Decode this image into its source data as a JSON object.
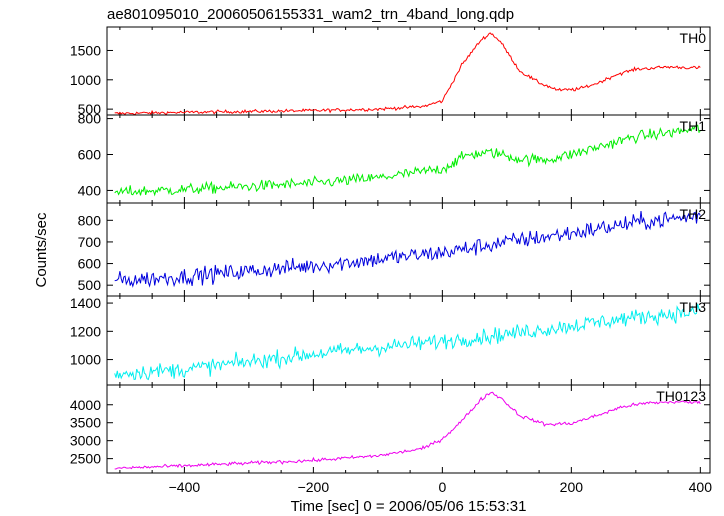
{
  "chart_data": {
    "type": "line",
    "title": "ae801095010_20060506155331_wam2_trn_4band_long.qdp",
    "xlabel": "Time [sec] 0 = 2006/05/06 15:53:31",
    "ylabel": "Counts/sec",
    "xlim": [
      -520,
      415
    ],
    "x_ticks": [
      -400,
      -200,
      0,
      200,
      400
    ],
    "x_tick_labels": [
      "−400",
      "−200",
      "0",
      "200",
      "400"
    ],
    "x_sample_step": 2,
    "x_range": [
      -508,
      400
    ],
    "panels": [
      {
        "name": "TH0",
        "color": "#ff0000",
        "ylim": [
          400,
          1900
        ],
        "y_ticks": [
          500,
          1000,
          1500
        ],
        "noise": 20,
        "profile": [
          [
            -508,
            425
          ],
          [
            -400,
            445
          ],
          [
            -200,
            475
          ],
          [
            -100,
            500
          ],
          [
            -30,
            545
          ],
          [
            0,
            640
          ],
          [
            30,
            1250
          ],
          [
            60,
            1680
          ],
          [
            75,
            1800
          ],
          [
            90,
            1650
          ],
          [
            120,
            1150
          ],
          [
            150,
            950
          ],
          [
            180,
            820
          ],
          [
            210,
            840
          ],
          [
            240,
            940
          ],
          [
            270,
            1090
          ],
          [
            300,
            1180
          ],
          [
            350,
            1220
          ],
          [
            400,
            1200
          ]
        ]
      },
      {
        "name": "TH1",
        "color": "#00ee00",
        "ylim": [
          330,
          820
        ],
        "y_ticks": [
          400,
          600,
          800
        ],
        "noise": 22,
        "profile": [
          [
            -508,
            390
          ],
          [
            -400,
            405
          ],
          [
            -200,
            440
          ],
          [
            -100,
            470
          ],
          [
            0,
            520
          ],
          [
            40,
            600
          ],
          [
            80,
            610
          ],
          [
            120,
            575
          ],
          [
            160,
            570
          ],
          [
            200,
            600
          ],
          [
            250,
            650
          ],
          [
            300,
            700
          ],
          [
            350,
            720
          ],
          [
            400,
            745
          ]
        ]
      },
      {
        "name": "TH2",
        "color": "#0000dd",
        "ylim": [
          450,
          880
        ],
        "y_ticks": [
          500,
          600,
          700,
          800
        ],
        "noise": 28,
        "profile": [
          [
            -508,
            520
          ],
          [
            -400,
            540
          ],
          [
            -200,
            590
          ],
          [
            0,
            650
          ],
          [
            100,
            700
          ],
          [
            200,
            740
          ],
          [
            300,
            790
          ],
          [
            400,
            820
          ]
        ]
      },
      {
        "name": "TH3",
        "color": "#00eeee",
        "ylim": [
          820,
          1450
        ],
        "y_ticks": [
          1000,
          1200,
          1400
        ],
        "noise": 40,
        "profile": [
          [
            -508,
            900
          ],
          [
            -400,
            930
          ],
          [
            -200,
            1040
          ],
          [
            0,
            1130
          ],
          [
            100,
            1180
          ],
          [
            200,
            1240
          ],
          [
            300,
            1300
          ],
          [
            400,
            1340
          ]
        ]
      },
      {
        "name": "TH0123",
        "color": "#ee00ee",
        "ylim": [
          2100,
          4550
        ],
        "y_ticks": [
          2500,
          3000,
          3500,
          4000
        ],
        "noise": 35,
        "profile": [
          [
            -508,
            2230
          ],
          [
            -400,
            2300
          ],
          [
            -200,
            2450
          ],
          [
            -100,
            2580
          ],
          [
            -30,
            2780
          ],
          [
            0,
            3050
          ],
          [
            30,
            3550
          ],
          [
            60,
            4150
          ],
          [
            75,
            4350
          ],
          [
            90,
            4200
          ],
          [
            120,
            3700
          ],
          [
            160,
            3450
          ],
          [
            200,
            3480
          ],
          [
            240,
            3700
          ],
          [
            280,
            3950
          ],
          [
            320,
            4050
          ],
          [
            360,
            4080
          ],
          [
            400,
            4060
          ]
        ]
      }
    ]
  }
}
